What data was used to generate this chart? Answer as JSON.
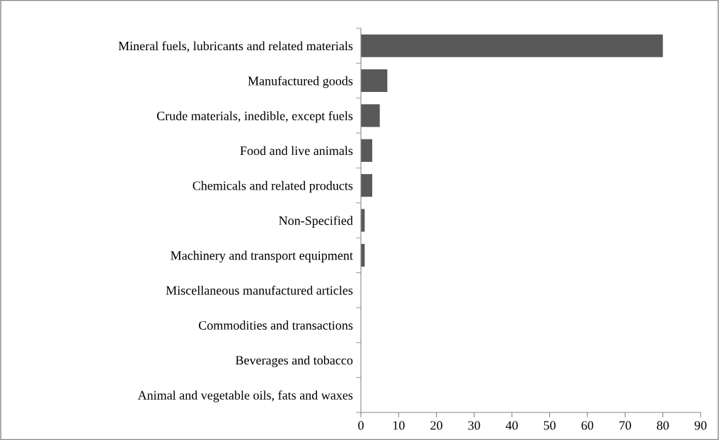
{
  "chart_data": {
    "type": "bar",
    "orientation": "horizontal",
    "categories": [
      "Mineral fuels, lubricants and related materials",
      "Manufactured goods",
      "Crude materials, inedible, except fuels",
      "Food and live animals",
      "Chemicals and related products",
      "Non-Specified",
      "Machinery and transport equipment",
      "Miscellaneous manufactured articles",
      "Commodities and transactions",
      "Beverages and tobacco",
      "Animal and vegetable oils, fats and waxes"
    ],
    "values": [
      80,
      7,
      5,
      3,
      3,
      1,
      1,
      0,
      0,
      0,
      0
    ],
    "color": "#595959",
    "xlim": [
      0,
      90
    ],
    "xticks": [
      0,
      10,
      20,
      30,
      40,
      50,
      60,
      70,
      80,
      90
    ],
    "grid": false,
    "legend": false
  }
}
